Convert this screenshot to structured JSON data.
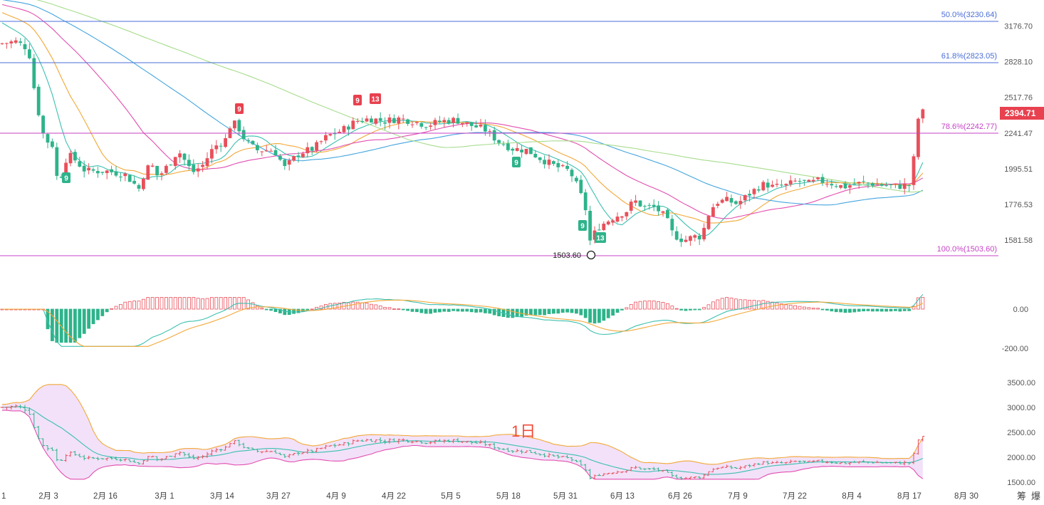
{
  "chart_data": [
    {
      "type": "candlestick",
      "yticks": [
        "3176.70",
        "2828.10",
        "2517.76",
        "2241.47",
        "1995.51",
        "1776.53",
        "1581.58"
      ],
      "ytick_values": [
        3176.7,
        2828.1,
        2517.76,
        2241.47,
        1995.51,
        1776.53,
        1581.58
      ],
      "last_price": "2394.71",
      "fib_levels": [
        {
          "label": "50.0%(3230.64)",
          "value": 3230.64,
          "color": "#4a6ed8"
        },
        {
          "label": "61.8%(2823.05)",
          "value": 2823.05,
          "color": "#4a6ed8"
        },
        {
          "label": "78.6%(2242.77)",
          "value": 2242.77,
          "color": "#c643c6"
        },
        {
          "label": "100.0%(1503.60)",
          "value": 1503.6,
          "color": "#c643c6"
        }
      ],
      "low_marker": {
        "label": "1503.60",
        "value": 1503.6
      },
      "signals": [
        {
          "text": "9",
          "kind": "green"
        },
        {
          "text": "9",
          "kind": "red"
        },
        {
          "text": "9",
          "kind": "red"
        },
        {
          "text": "13",
          "kind": "red"
        },
        {
          "text": "9",
          "kind": "green"
        },
        {
          "text": "9",
          "kind": "green"
        },
        {
          "text": "13",
          "kind": "green"
        }
      ],
      "up_color": "#e8505b",
      "down_color": "#2eb38a",
      "ma_colors": [
        "#3cc0b0",
        "#f2a838",
        "#e24fb0",
        "#45a5de",
        "#a6dc8c"
      ]
    },
    {
      "type": "macd_histogram",
      "yticks": [
        "0.00",
        "-200.00"
      ],
      "ytick_values": [
        0,
        -200
      ]
    },
    {
      "type": "bollinger_band",
      "label": "1日",
      "yticks": [
        "3500.00",
        "3000.00",
        "2500.00",
        "2000.00",
        "1500.00"
      ],
      "ytick_values": [
        3500,
        3000,
        2500,
        2000,
        1500
      ]
    }
  ],
  "x_axis": {
    "labels": [
      "1",
      "2月 3",
      "2月 16",
      "3月 1",
      "3月 14",
      "3月 27",
      "4月 9",
      "4月 22",
      "5月 5",
      "5月 18",
      "5月 31",
      "6月 13",
      "6月 26",
      "7月 9",
      "7月 22",
      "8月 4",
      "8月 17",
      "8月 30"
    ]
  },
  "corner": {
    "a": "筹",
    "b": "爆"
  }
}
